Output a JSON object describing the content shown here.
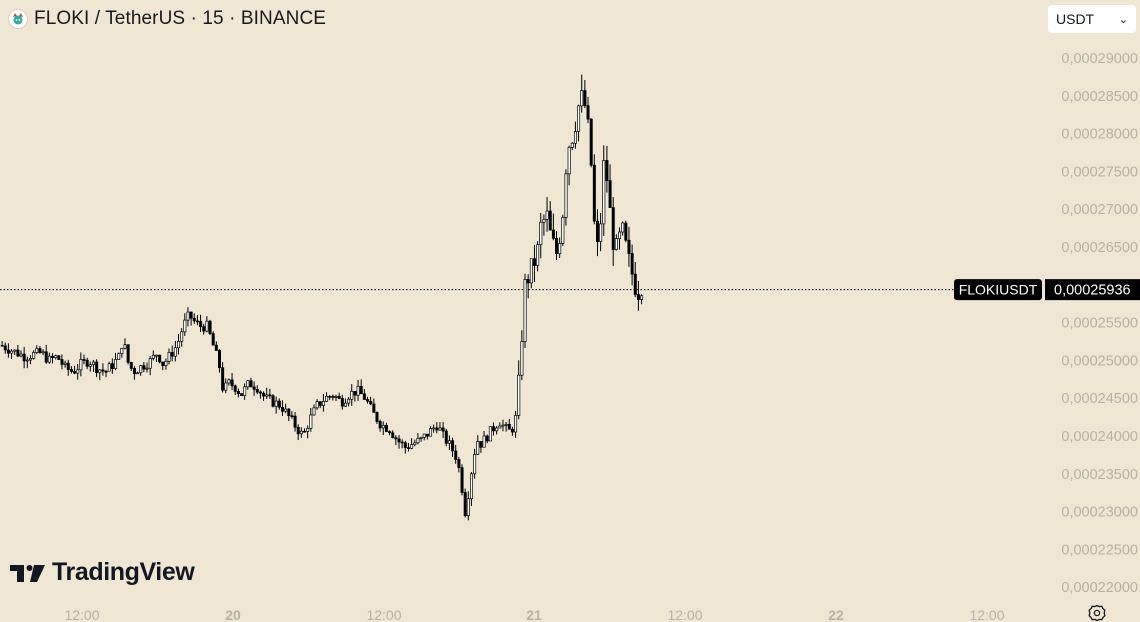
{
  "header": {
    "title": "FLOKI / TetherUS · 15 · BINANCE",
    "coin_icon": "floki-viking-icon"
  },
  "currency_select": {
    "value": "USDT",
    "icon": "chevron-down-icon"
  },
  "watermark": {
    "text": "TradingView",
    "icon": "tradingview-logo-icon"
  },
  "settings": {
    "icon": "gear-icon"
  },
  "colors": {
    "background": "#efe7d3",
    "candle": "#000000",
    "axis_text": "#b9b2a2",
    "badge_bg": "#000000",
    "badge_text": "#ffffff"
  },
  "chart_data": {
    "type": "candlestick",
    "symbol": "FLOKIUSDT",
    "interval": "15",
    "exchange": "BINANCE",
    "last_price": "0,00025936",
    "y_axis": {
      "ticks": [
        "0,00029000",
        "0,00028500",
        "0,00028000",
        "0,00027500",
        "0,00027000",
        "0,00026500",
        "0,00025500",
        "0,00025000",
        "0,00024500",
        "0,00024000",
        "0,00023500",
        "0,00023000",
        "0,00022500",
        "0,00022000"
      ],
      "ylim": [
        0.000218,
        0.000297
      ]
    },
    "x_axis": {
      "ticks": [
        {
          "label": "12:00",
          "bold": false
        },
        {
          "label": "20",
          "bold": true
        },
        {
          "label": "12:00",
          "bold": false
        },
        {
          "label": "21",
          "bold": true
        },
        {
          "label": "12:00",
          "bold": false
        },
        {
          "label": "22",
          "bold": true
        },
        {
          "label": "12:00",
          "bold": false
        }
      ]
    },
    "price_path": [
      [
        0,
        0.000252
      ],
      [
        8,
        0.0002515
      ],
      [
        16,
        0.000251
      ],
      [
        24,
        0.0002505
      ],
      [
        32,
        0.0002508
      ],
      [
        40,
        0.000251
      ],
      [
        48,
        0.00025
      ],
      [
        56,
        0.0002505
      ],
      [
        64,
        0.000249
      ],
      [
        72,
        0.0002485
      ],
      [
        80,
        0.0002495
      ],
      [
        88,
        0.00025
      ],
      [
        96,
        0.000249
      ],
      [
        104,
        0.0002485
      ],
      [
        112,
        0.0002495
      ],
      [
        118,
        0.0002505
      ],
      [
        122,
        0.000253
      ],
      [
        126,
        0.00025
      ],
      [
        132,
        0.0002485
      ],
      [
        138,
        0.000249
      ],
      [
        144,
        0.0002495
      ],
      [
        150,
        0.00025
      ],
      [
        156,
        0.000251
      ],
      [
        162,
        0.0002495
      ],
      [
        168,
        0.0002505
      ],
      [
        176,
        0.000252
      ],
      [
        182,
        0.0002545
      ],
      [
        188,
        0.000256
      ],
      [
        194,
        0.000255
      ],
      [
        200,
        0.0002545
      ],
      [
        206,
        0.0002545
      ],
      [
        212,
        0.000252
      ],
      [
        218,
        0.0002495
      ],
      [
        222,
        0.000246
      ],
      [
        228,
        0.000247
      ],
      [
        234,
        0.0002465
      ],
      [
        240,
        0.0002455
      ],
      [
        248,
        0.000247
      ],
      [
        256,
        0.0002465
      ],
      [
        264,
        0.000245
      ],
      [
        272,
        0.0002445
      ],
      [
        280,
        0.000244
      ],
      [
        288,
        0.0002425
      ],
      [
        296,
        0.000241
      ],
      [
        302,
        0.00024
      ],
      [
        308,
        0.000242
      ],
      [
        316,
        0.000244
      ],
      [
        324,
        0.000245
      ],
      [
        332,
        0.0002455
      ],
      [
        340,
        0.0002445
      ],
      [
        348,
        0.0002455
      ],
      [
        356,
        0.000246
      ],
      [
        364,
        0.000245
      ],
      [
        372,
        0.000243
      ],
      [
        380,
        0.0002415
      ],
      [
        388,
        0.000241
      ],
      [
        396,
        0.0002395
      ],
      [
        404,
        0.0002385
      ],
      [
        412,
        0.000239
      ],
      [
        420,
        0.0002395
      ],
      [
        428,
        0.0002405
      ],
      [
        436,
        0.0002415
      ],
      [
        442,
        0.00024
      ],
      [
        450,
        0.0002385
      ],
      [
        456,
        0.000237
      ],
      [
        460,
        0.000234
      ],
      [
        464,
        0.00023
      ],
      [
        468,
        0.000233
      ],
      [
        472,
        0.000237
      ],
      [
        476,
        0.0002395
      ],
      [
        480,
        0.000239
      ],
      [
        486,
        0.00024
      ],
      [
        492,
        0.000241
      ],
      [
        498,
        0.000242
      ],
      [
        504,
        0.000241
      ],
      [
        510,
        0.0002405
      ],
      [
        516,
        0.000243
      ],
      [
        520,
        0.000252
      ],
      [
        524,
        0.00026
      ],
      [
        530,
        0.000262
      ],
      [
        536,
        0.000264
      ],
      [
        540,
        0.000268
      ],
      [
        546,
        0.000269
      ],
      [
        550,
        0.000266
      ],
      [
        556,
        0.000264
      ],
      [
        562,
        0.00027
      ],
      [
        566,
        0.000278
      ],
      [
        572,
        0.00028
      ],
      [
        578,
        0.000284
      ],
      [
        582,
        0.000285
      ],
      [
        586,
        0.000282
      ],
      [
        590,
        0.000276
      ],
      [
        594,
        0.000266
      ],
      [
        598,
        0.000264
      ],
      [
        602,
        0.000276
      ],
      [
        606,
        0.000274
      ],
      [
        610,
        0.000268
      ],
      [
        614,
        0.000264
      ],
      [
        618,
        0.000266
      ],
      [
        622,
        0.000267
      ],
      [
        626,
        0.000264
      ],
      [
        630,
        0.000262
      ],
      [
        634,
        0.00026
      ],
      [
        638,
        0.000259
      ],
      [
        642,
        0.0002594
      ]
    ]
  }
}
